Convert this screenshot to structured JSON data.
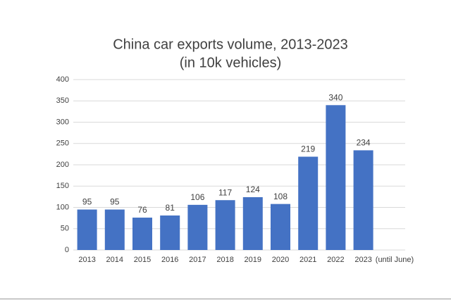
{
  "chart_data": {
    "type": "bar",
    "title": "China car exports volume, 2013-2023",
    "subtitle": "(in 10k vehicles)",
    "annotation": "(until June)",
    "categories": [
      "2013",
      "2014",
      "2015",
      "2016",
      "2017",
      "2018",
      "2019",
      "2020",
      "2021",
      "2022",
      "2023"
    ],
    "values": [
      95,
      95,
      76,
      81,
      106,
      117,
      124,
      108,
      219,
      340,
      234
    ],
    "color": "#4472c4",
    "ylim": [
      0,
      400
    ],
    "yticks": [
      0,
      50,
      100,
      150,
      200,
      250,
      300,
      350,
      400
    ],
    "grid": true
  }
}
